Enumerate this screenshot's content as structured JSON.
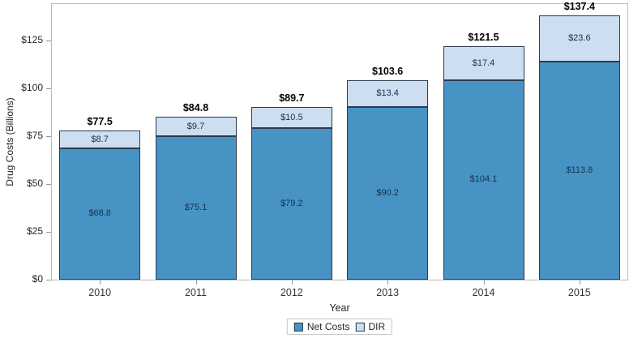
{
  "chart_data": {
    "type": "bar",
    "stacked": true,
    "categories": [
      "2010",
      "2011",
      "2012",
      "2013",
      "2014",
      "2015"
    ],
    "series": [
      {
        "name": "Net Costs",
        "values": [
          68.8,
          75.1,
          79.2,
          90.2,
          104.1,
          113.8
        ],
        "labels": [
          "$68.8",
          "$75.1",
          "$79.2",
          "$90.2",
          "$104.1",
          "$113.8"
        ],
        "color": "#4794c4"
      },
      {
        "name": "DIR",
        "values": [
          8.7,
          9.7,
          10.5,
          13.4,
          17.4,
          23.6
        ],
        "labels": [
          "$8.7",
          "$9.7",
          "$10.5",
          "$13.4",
          "$17.4",
          "$23.6"
        ],
        "color": "#ccdeef"
      }
    ],
    "totals": [
      77.5,
      84.8,
      89.7,
      103.6,
      121.5,
      137.4
    ],
    "total_labels": [
      "$77.5",
      "$84.8",
      "$89.7",
      "$103.6",
      "$121.5",
      "$137.4"
    ],
    "xlabel": "Year",
    "ylabel": "Drug Costs (Billions)",
    "ylim": [
      0,
      144
    ],
    "ytick_values": [
      0,
      25,
      50,
      75,
      100,
      125
    ],
    "ytick_labels": [
      "$0",
      "$25",
      "$50",
      "$75",
      "$100",
      "$125"
    ],
    "grid": false,
    "legend_position": "bottom-center",
    "segment_border_color": "#2c3b4d"
  }
}
